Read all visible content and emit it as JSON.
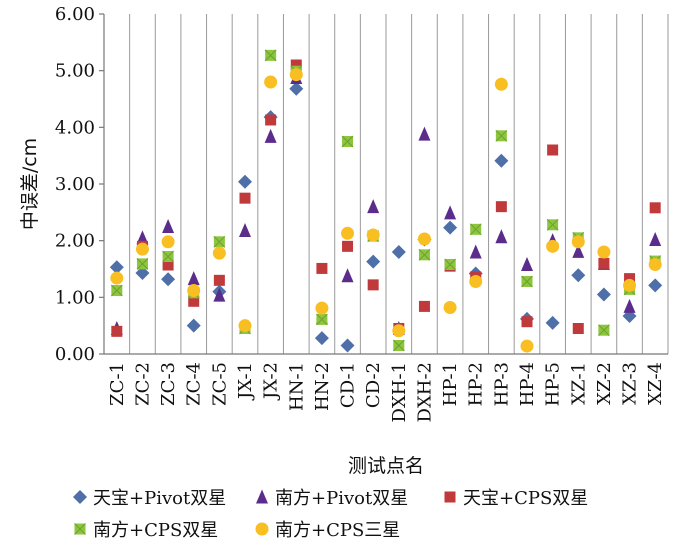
{
  "chart_data": {
    "type": "scatter",
    "title": "",
    "xlabel": "测试点名",
    "ylabel": "中误差/cm",
    "ylim": [
      0,
      6
    ],
    "ytick_labels": [
      "0.00",
      "1.00",
      "2.00",
      "3.00",
      "4.00",
      "5.00",
      "6.00"
    ],
    "categories": [
      "ZC-1",
      "ZC-2",
      "ZC-3",
      "ZC-4",
      "ZC-5",
      "JX-1",
      "JX-2",
      "HN-1",
      "HN-2",
      "CD-1",
      "CD-2",
      "DXH-1",
      "DXH-2",
      "HP-1",
      "HP-2",
      "HP-3",
      "HP-4",
      "HP-5",
      "XZ-1",
      "XZ-2",
      "XZ-3",
      "XZ-4"
    ],
    "series": [
      {
        "name": "天宝+Pivot双星",
        "marker": "diamond",
        "color": "#4f6fa8",
        "values": [
          1.53,
          1.43,
          1.32,
          0.5,
          1.1,
          3.04,
          4.18,
          4.68,
          0.28,
          0.15,
          1.63,
          1.8,
          2.02,
          2.23,
          1.42,
          3.41,
          0.62,
          0.55,
          1.39,
          1.05,
          0.67,
          1.21
        ]
      },
      {
        "name": "南方+Pivot双星",
        "marker": "triangle",
        "color": "#5b2c8b",
        "values": [
          0.45,
          2.05,
          2.25,
          1.33,
          1.04,
          2.18,
          3.84,
          4.88,
          0.65,
          1.38,
          2.6,
          0.45,
          3.88,
          2.49,
          1.8,
          2.07,
          1.58,
          2.0,
          1.81,
          1.6,
          0.84,
          2.02
        ]
      },
      {
        "name": "天宝+CPS双星",
        "marker": "square",
        "color": "#c0393b",
        "values": [
          0.4,
          1.9,
          1.57,
          0.93,
          1.3,
          2.75,
          4.13,
          5.1,
          1.51,
          1.9,
          1.22,
          0.45,
          0.84,
          1.55,
          1.36,
          2.6,
          0.57,
          3.6,
          0.45,
          1.6,
          1.33,
          2.58
        ]
      },
      {
        "name": "南方+CPS双星",
        "marker": "square-x",
        "color": "#8cc63f",
        "values": [
          1.12,
          1.59,
          1.72,
          1.08,
          1.98,
          0.45,
          5.27,
          4.99,
          0.61,
          3.75,
          2.08,
          0.15,
          1.75,
          1.58,
          2.2,
          3.85,
          1.28,
          2.28,
          2.05,
          0.42,
          1.14,
          1.64
        ]
      },
      {
        "name": "南方+CPS三星",
        "marker": "circle",
        "color": "#f8be22",
        "values": [
          1.34,
          1.85,
          1.98,
          1.12,
          1.78,
          0.5,
          4.8,
          4.93,
          0.81,
          2.13,
          2.1,
          0.41,
          2.03,
          0.82,
          1.28,
          4.76,
          0.14,
          1.9,
          1.98,
          1.8,
          1.21,
          1.58
        ]
      }
    ],
    "legend": {
      "placement": "bottom",
      "items": [
        "天宝+Pivot双星",
        "南方+Pivot双星",
        "天宝+CPS双星",
        "南方+CPS双星",
        "南方+CPS三星"
      ]
    },
    "grid": {
      "vertical": true,
      "horizontal": false
    }
  }
}
